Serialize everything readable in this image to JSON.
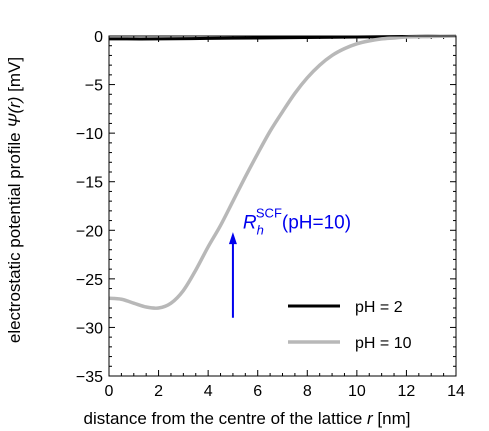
{
  "chart_data": {
    "type": "line",
    "xlabel": "distance from the centre of the lattice",
    "xlabel_var": "r",
    "xlabel_unit": "[nm]",
    "ylabel": "electrostatic potential profile",
    "ylabel_var": "Ψ(r)",
    "ylabel_unit": "[mV]",
    "xlim": [
      0,
      14
    ],
    "ylim": [
      -35,
      0
    ],
    "x_ticks": [
      0,
      2,
      4,
      6,
      8,
      10,
      12,
      14
    ],
    "x_tick_labels": [
      "0",
      "2",
      "4",
      "6",
      "8",
      "10",
      "12",
      "14"
    ],
    "y_ticks": [
      0,
      -5,
      -10,
      -15,
      -20,
      -25,
      -30,
      -35
    ],
    "y_tick_labels": [
      "0",
      "−5",
      "−10",
      "−15",
      "−20",
      "−25",
      "−30",
      "−35"
    ],
    "grid": false,
    "legend_position": "bottom-right",
    "series": [
      {
        "name": "pH = 2",
        "color": "#000000",
        "x": [
          0,
          2,
          4,
          6,
          8,
          10,
          12,
          14
        ],
        "y": [
          -0.3,
          -0.3,
          -0.25,
          -0.2,
          -0.15,
          -0.1,
          -0.05,
          0
        ]
      },
      {
        "name": "pH = 10",
        "color": "#b8b8b8",
        "x": [
          0,
          0.5,
          1.0,
          1.5,
          2.0,
          2.5,
          3.0,
          3.5,
          4.0,
          4.5,
          5.0,
          5.5,
          6.0,
          6.5,
          7.0,
          7.5,
          8.0,
          8.5,
          9.0,
          9.5,
          10.0,
          10.5,
          11.0,
          11.5,
          12.0,
          13.0,
          14.0
        ],
        "y": [
          -27.0,
          -27.1,
          -27.5,
          -27.9,
          -28.0,
          -27.5,
          -26.2,
          -24.1,
          -21.7,
          -19.5,
          -17.0,
          -14.5,
          -12.1,
          -9.8,
          -7.8,
          -5.9,
          -4.3,
          -3.0,
          -2.0,
          -1.3,
          -0.8,
          -0.5,
          -0.3,
          -0.2,
          -0.1,
          -0.05,
          0
        ]
      }
    ],
    "annotation": {
      "label_main": "R",
      "label_sub": "h",
      "label_sup": "SCF",
      "label_suffix": "(pH=10)",
      "arrow_x": 5,
      "arrow_y_from": -29,
      "arrow_y_to": -20.6,
      "color": "#0000ee"
    }
  }
}
